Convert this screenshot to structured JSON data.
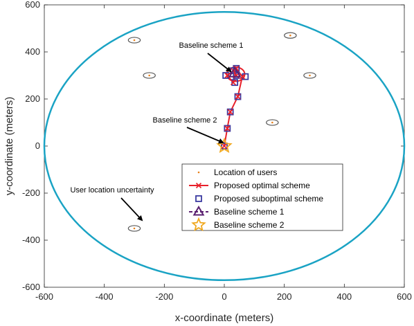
{
  "chart_data": {
    "type": "scatter",
    "xlabel": "x-coordinate (meters)",
    "ylabel": "y-coordinate (meters)",
    "xlim": [
      -600,
      600
    ],
    "ylim": [
      -600,
      600
    ],
    "xticks": [
      -600,
      -400,
      -200,
      0,
      200,
      400,
      600
    ],
    "yticks": [
      -600,
      -400,
      -200,
      0,
      200,
      400,
      600
    ],
    "grid": false,
    "legend_position": "bottom-center",
    "boundary_circle": {
      "center": [
        0,
        0
      ],
      "rx": 600,
      "ry": 570,
      "color": "#1aa3c4"
    },
    "users": [
      {
        "x": -300,
        "y": 450
      },
      {
        "x": -250,
        "y": 300
      },
      {
        "x": 220,
        "y": 470
      },
      {
        "x": 285,
        "y": 300
      },
      {
        "x": 160,
        "y": 100
      },
      {
        "x": -300,
        "y": -350
      }
    ],
    "uncertainty": {
      "rx": 20,
      "ry": 12
    },
    "series": [
      {
        "name": "Location of users",
        "marker": "dot",
        "color": "#e8801a",
        "x": [
          -300,
          -250,
          220,
          285,
          160,
          -300
        ],
        "y": [
          450,
          300,
          470,
          300,
          100,
          -350
        ]
      },
      {
        "name": "Proposed optimal scheme",
        "marker": "x",
        "color": "#e8202a",
        "x": [
          0,
          10,
          20,
          45,
          60,
          40,
          30,
          10,
          30,
          40
        ],
        "y": [
          0,
          75,
          145,
          210,
          295,
          330,
          270,
          300,
          320,
          300
        ]
      },
      {
        "name": "Proposed suboptimal scheme",
        "marker": "square",
        "color": "#3a3aa0",
        "x": [
          0,
          10,
          20,
          45,
          70,
          40,
          35,
          5,
          30,
          40
        ],
        "y": [
          0,
          75,
          145,
          210,
          295,
          330,
          270,
          300,
          320,
          300
        ]
      },
      {
        "name": "Baseline scheme 1",
        "marker": "triangle",
        "color": "#5a2070",
        "x": [
          35
        ],
        "y": [
          310
        ]
      },
      {
        "name": "Baseline scheme 2",
        "marker": "star",
        "color": "#f0a820",
        "x": [
          0
        ],
        "y": [
          0
        ]
      }
    ],
    "annotations": [
      {
        "text": "Baseline scheme 1",
        "x": 35,
        "y": 310
      },
      {
        "text": "Baseline scheme 2",
        "x": 0,
        "y": 0
      },
      {
        "text": "User location uncertainty",
        "x": -300,
        "y": -350
      }
    ]
  }
}
